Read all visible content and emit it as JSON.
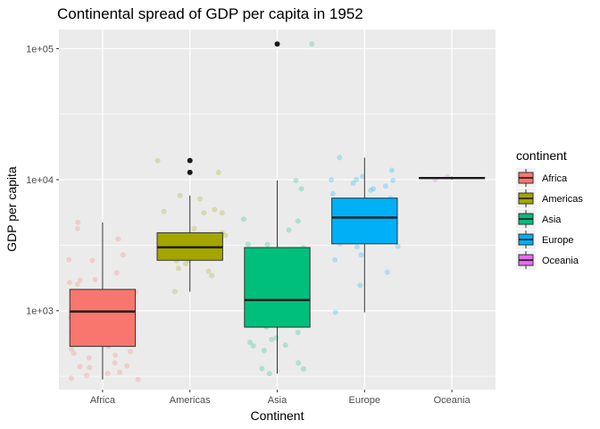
{
  "chart_data": {
    "type": "boxplot",
    "title": "Continental spread of GDP per capita in 1952",
    "xlabel": "Continent",
    "ylabel": "GDP per capita",
    "y_scale": "log10",
    "ylim": [
      250,
      140000
    ],
    "y_ticks": [
      {
        "value": 1000,
        "label": "1e+03"
      },
      {
        "value": 10000,
        "label": "1e+04"
      },
      {
        "value": 100000,
        "label": "1e+05"
      }
    ],
    "grid": true,
    "legend": {
      "title": "continent",
      "position": "right"
    },
    "categories": [
      "Africa",
      "Americas",
      "Asia",
      "Europe",
      "Oceania"
    ],
    "colors": {
      "Africa": "#F8766D",
      "Americas": "#A3A500",
      "Asia": "#00BF7D",
      "Europe": "#00B0F6",
      "Oceania": "#E76BF3"
    },
    "boxes": [
      {
        "category": "Africa",
        "whisker_low": 298.8,
        "q1": 534.9,
        "median": 987.0,
        "q3": 1455.0,
        "whisker_high": 4725.3,
        "outliers": []
      },
      {
        "category": "Americas",
        "whisker_low": 1397.7,
        "q1": 2428.2,
        "median": 3048.3,
        "q3": 3939.9,
        "whisker_high": 7567.0,
        "outliers": [
          11367.2,
          13990.5
        ]
      },
      {
        "category": "Asia",
        "whisker_low": 331.0,
        "q1": 749.6,
        "median": 1206.9,
        "q3": 3035.3,
        "whisker_high": 9867.1,
        "outliers": [
          108382.4
        ]
      },
      {
        "category": "Europe",
        "whisker_low": 973.5,
        "q1": 3241.1,
        "median": 5142.5,
        "q3": 7236.1,
        "whisker_high": 14734.2,
        "outliers": []
      },
      {
        "category": "Oceania",
        "whisker_low": 10039.6,
        "q1": 10220.0,
        "median": 10298.1,
        "q3": 10376.3,
        "whisker_high": 10556.6,
        "outliers": []
      }
    ],
    "points": [
      {
        "category": "Africa",
        "values": [
          4725.3,
          4247.4,
          2449.0,
          3520.6,
          2669.5,
          2423.8,
          1952.3,
          1388.6,
          1172.7,
          1311.0,
          1267.1,
          1062.8,
          1077.3,
          987.0,
          880.0,
          828.5,
          781.7,
          734.8,
          702.4,
          684.2,
          662.6,
          612.9,
          543.3,
          534.9,
          510.2,
          488.4,
          474.2,
          457.8,
          437.6,
          399.6,
          379.6,
          375.6,
          368.5,
          339.3,
          331.6,
          320.9,
          305.8,
          298.8,
          1713.8,
          1595.2,
          1643.5,
          1725.7
        ]
      },
      {
        "category": "Americas",
        "values": [
          13990.5,
          11367.2,
          7567.0,
          7144.1,
          5911.3,
          5716.8,
          5586.5,
          4245.3,
          3939.9,
          3758.5,
          3478.1,
          3048.3,
          2961.2,
          2672.0,
          2428.2,
          2401.9,
          2108.9,
          2001.3,
          1397.7,
          2282.0,
          3758.5,
          5586.5,
          2961.2,
          1855.0
        ]
      },
      {
        "category": "Asia",
        "values": [
          108382.4,
          9867.1,
          8527.8,
          4129.8,
          3216.0,
          3035.3,
          2889.0,
          1830.0,
          1546.9,
          1306.0,
          1206.9,
          1030.6,
          972.0,
          834.8,
          749.6,
          684.6,
          575.0,
          546.6,
          540.0,
          498.1,
          400.4,
          331.0,
          4836.0,
          3200.0,
          1400.0,
          900.0,
          603.0,
          620.0,
          360.0,
          362.0,
          880.0,
          2000.0,
          5000.0
        ]
      },
      {
        "category": "Europe",
        "values": [
          14734.2,
          10039.6,
          9867.1,
          9979.5,
          8941.6,
          8527.8,
          7236.1,
          6137.1,
          5263.7,
          5142.5,
          4931.4,
          4215.0,
          3940.0,
          3530.7,
          3241.1,
          3068.3,
          2444.3,
          1969.1,
          1563.0,
          973.5,
          6000.0,
          5700.0,
          4700.0,
          3100.0,
          2668.0,
          7800.0,
          9400.0,
          10600.0,
          11800.0,
          8300.0
        ]
      },
      {
        "category": "Oceania",
        "values": [
          10039.6,
          10556.6
        ]
      }
    ]
  }
}
